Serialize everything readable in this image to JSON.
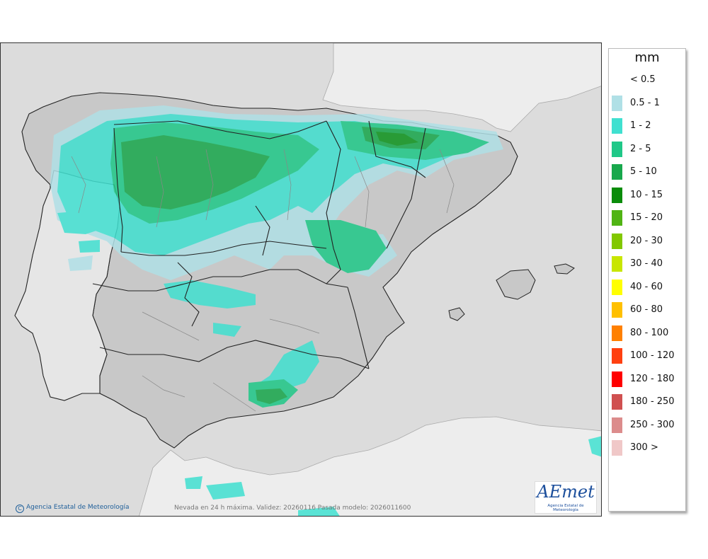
{
  "legend": {
    "unit": "mm",
    "items": [
      {
        "label": "< 0.5",
        "color": null
      },
      {
        "label": "0.5 - 1",
        "color": "#b0e0e6"
      },
      {
        "label": "1 - 2",
        "color": "#40e0d0"
      },
      {
        "label": "2 - 5",
        "color": "#20c888"
      },
      {
        "label": "5 - 10",
        "color": "#18a84c"
      },
      {
        "label": "10 - 15",
        "color": "#0a8c0a"
      },
      {
        "label": "15 - 20",
        "color": "#50b414"
      },
      {
        "label": "20 - 30",
        "color": "#82c800"
      },
      {
        "label": "30 - 40",
        "color": "#c8e600"
      },
      {
        "label": "40 - 60",
        "color": "#ffff00"
      },
      {
        "label": "60 - 80",
        "color": "#ffc000"
      },
      {
        "label": "80 - 100",
        "color": "#ff8000"
      },
      {
        "label": "100 - 120",
        "color": "#ff4010"
      },
      {
        "label": "120 - 180",
        "color": "#ff0000"
      },
      {
        "label": "180 - 250",
        "color": "#d05050"
      },
      {
        "label": "250 - 300",
        "color": "#dc8c8c"
      },
      {
        "label": "300 >",
        "color": "#f0c8c8"
      }
    ]
  },
  "footer": {
    "credit": "Agencia Estatal de Meteorología",
    "copyright_symbol": "C",
    "caption": "Nevada en 24 h máxima. Validez: 20260116 Pasada modelo: 2026011600"
  },
  "logo": {
    "mark": "AEmet",
    "subtitle": "Agencia Estatal de Meteorología"
  },
  "map_colors": {
    "sea": "#dcdcdc",
    "foreign_land": "#ededed",
    "iberia_land": "#c8c8c8",
    "boundary": "#222222",
    "province_line": "#888888"
  }
}
